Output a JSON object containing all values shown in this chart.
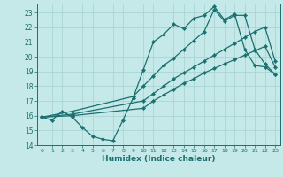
{
  "xlabel": "Humidex (Indice chaleur)",
  "xlim": [
    -0.5,
    23.5
  ],
  "ylim": [
    14,
    23.6
  ],
  "yticks": [
    14,
    15,
    16,
    17,
    18,
    19,
    20,
    21,
    22,
    23
  ],
  "xticks": [
    0,
    1,
    2,
    3,
    4,
    5,
    6,
    7,
    8,
    9,
    10,
    11,
    12,
    13,
    14,
    15,
    16,
    17,
    18,
    19,
    20,
    21,
    22,
    23
  ],
  "bg_color": "#c5e8e8",
  "line_color": "#1a7070",
  "grid_color": "#aad4d4",
  "lines": [
    {
      "x": [
        0,
        1,
        2,
        3,
        4,
        5,
        6,
        7,
        8,
        9,
        10,
        11,
        12,
        13,
        14,
        15,
        16,
        17,
        18,
        19,
        20,
        21,
        22,
        23
      ],
      "y": [
        15.9,
        15.7,
        16.3,
        15.9,
        15.2,
        14.6,
        14.4,
        14.3,
        15.7,
        17.2,
        19.1,
        21.0,
        21.5,
        22.2,
        21.9,
        22.6,
        22.8,
        23.4,
        22.5,
        22.9,
        20.5,
        19.4,
        19.3,
        18.8
      ]
    },
    {
      "x": [
        0,
        3,
        10,
        11,
        12,
        13,
        14,
        15,
        16,
        17,
        18,
        19,
        20,
        21,
        22,
        23
      ],
      "y": [
        15.9,
        16.0,
        16.5,
        17.0,
        17.4,
        17.8,
        18.2,
        18.5,
        18.9,
        19.2,
        19.5,
        19.8,
        20.1,
        20.4,
        20.7,
        19.3
      ]
    },
    {
      "x": [
        0,
        3,
        10,
        11,
        12,
        13,
        14,
        15,
        16,
        17,
        18,
        19,
        20,
        21,
        22,
        23
      ],
      "y": [
        15.9,
        16.1,
        17.0,
        17.5,
        18.0,
        18.5,
        18.9,
        19.3,
        19.7,
        20.1,
        20.5,
        20.9,
        21.3,
        21.7,
        22.0,
        19.7
      ]
    },
    {
      "x": [
        0,
        3,
        9,
        10,
        11,
        12,
        13,
        14,
        15,
        16,
        17,
        18,
        19,
        20,
        21,
        22,
        23
      ],
      "y": [
        15.9,
        16.3,
        17.3,
        18.0,
        18.7,
        19.4,
        19.9,
        20.5,
        21.1,
        21.7,
        23.2,
        22.4,
        22.8,
        22.8,
        20.5,
        19.5,
        18.8
      ]
    }
  ]
}
